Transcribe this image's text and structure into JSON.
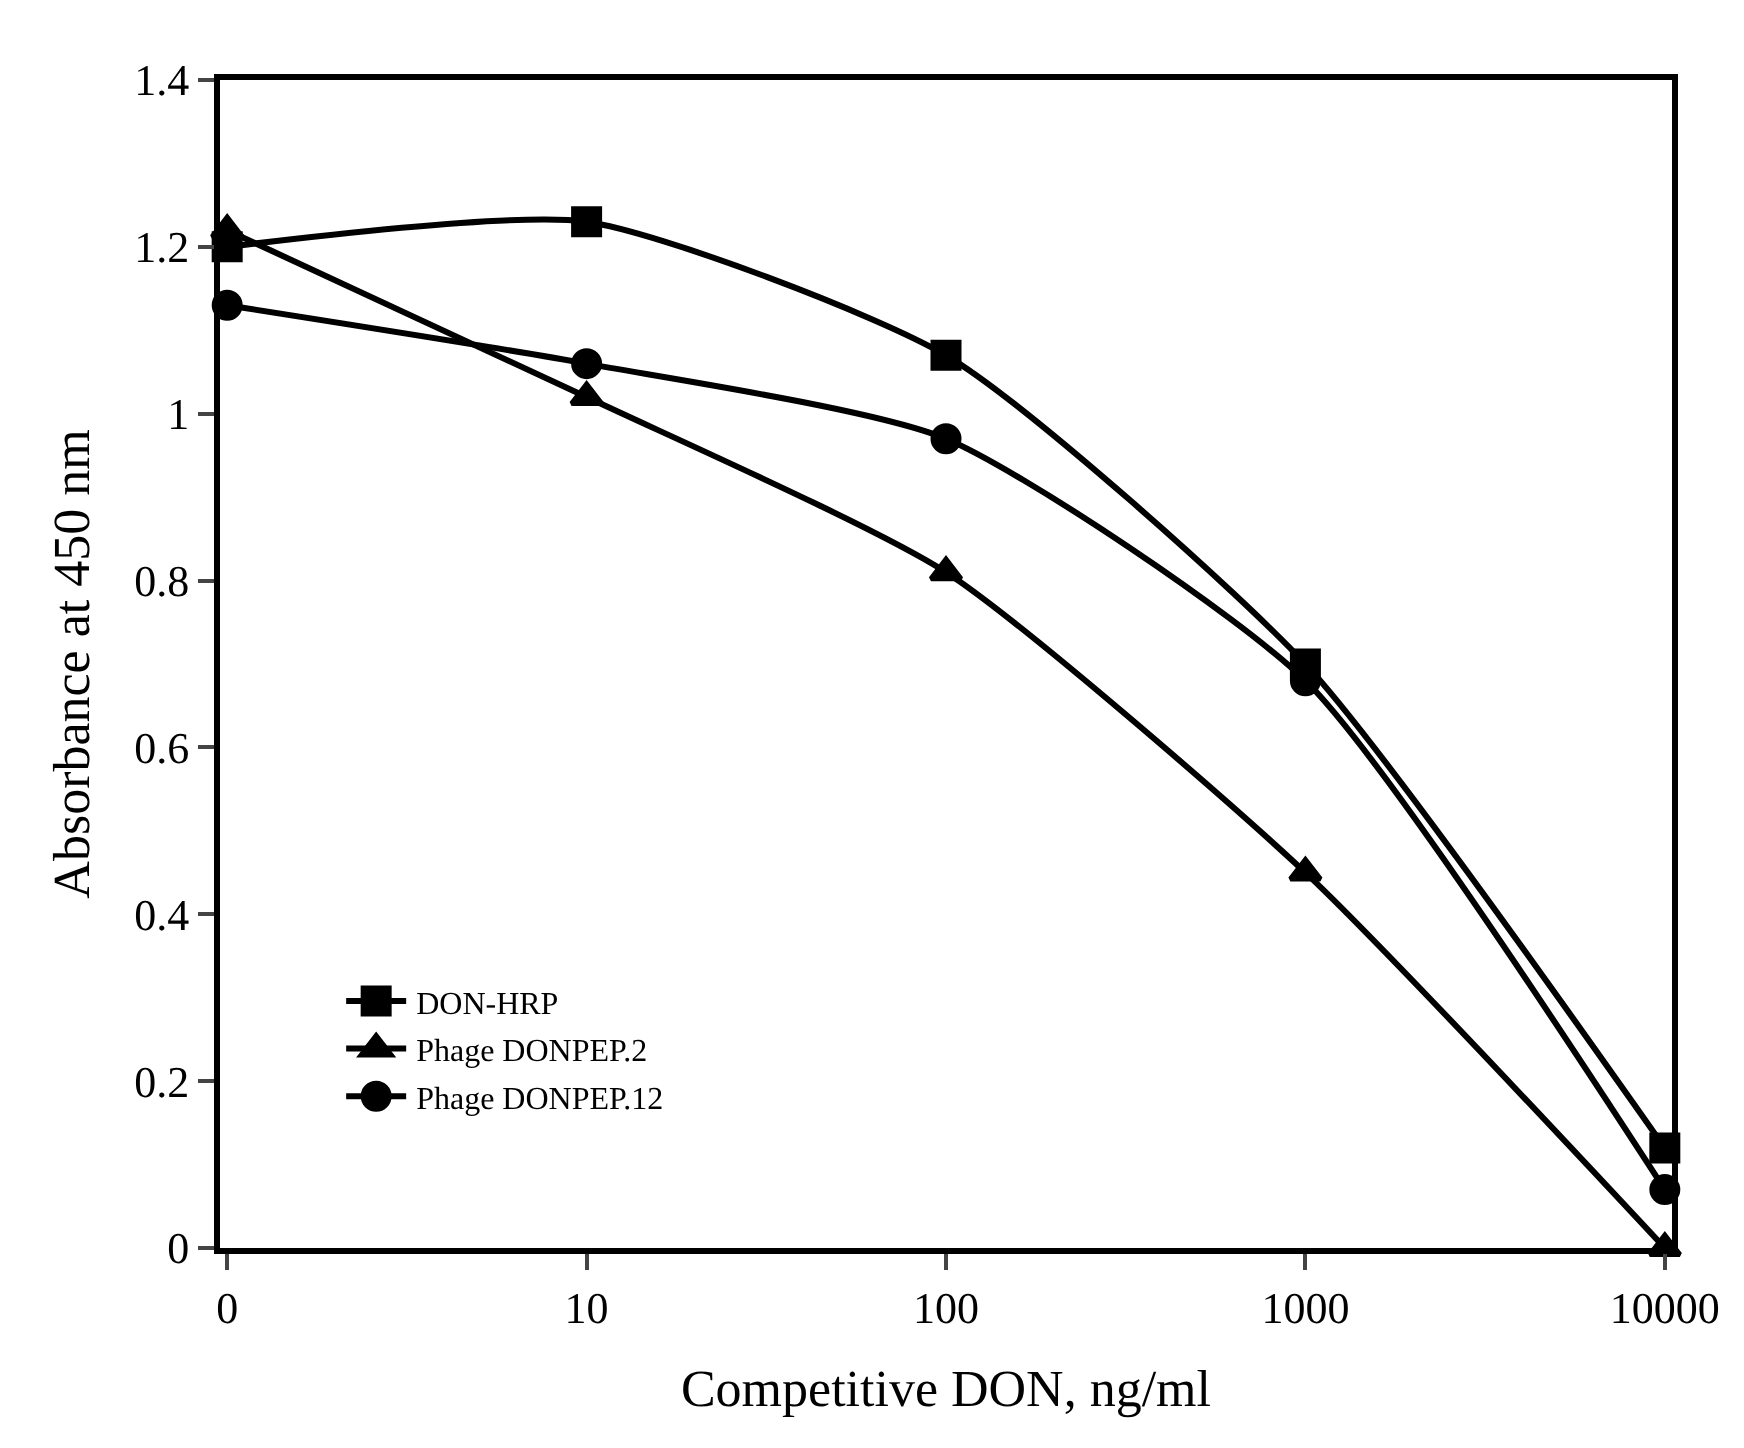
{
  "chart_data": {
    "type": "line",
    "xlabel": "Competitive DON, ng/ml",
    "ylabel": "Absorbance at 450 nm",
    "categories": [
      "0",
      "10",
      "100",
      "1000",
      "10000"
    ],
    "series": [
      {
        "name": "DON-HRP",
        "color": "#000000",
        "marker": "square",
        "values": [
          1.2,
          1.23,
          1.07,
          0.7,
          0.12
        ]
      },
      {
        "name": "Phage DONPEP.2",
        "color": "#000000",
        "marker": "triangle",
        "values": [
          1.22,
          1.02,
          0.81,
          0.45,
          0
        ]
      },
      {
        "name": "Phage DONPEP.12",
        "color": "#000000",
        "marker": "circle",
        "values": [
          1.13,
          1.06,
          0.97,
          0.68,
          0.07
        ]
      }
    ],
    "ylim": [
      0,
      1.4
    ],
    "yticks": [
      0,
      0.2,
      0.4,
      0.6,
      0.8,
      1,
      1.2,
      1.4
    ],
    "legend": "bottom left",
    "line_style": "solid"
  }
}
